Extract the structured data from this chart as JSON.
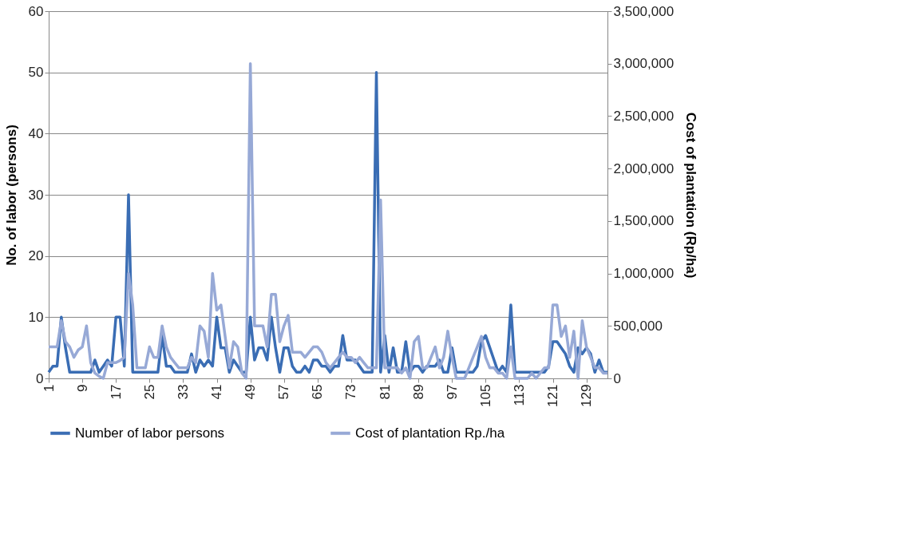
{
  "chart_data": {
    "type": "line",
    "ylabel": "No. of labor (persons)",
    "y2label": "Cost of plantation (Rp/ha)",
    "categories": [
      "1",
      null,
      null,
      null,
      null,
      null,
      null,
      null,
      "9",
      null,
      null,
      null,
      null,
      null,
      null,
      null,
      "17",
      null,
      null,
      null,
      null,
      null,
      null,
      null,
      "25",
      null,
      null,
      null,
      null,
      null,
      null,
      null,
      "33",
      null,
      null,
      null,
      null,
      null,
      null,
      null,
      "41",
      null,
      null,
      null,
      null,
      null,
      null,
      null,
      "49",
      null,
      null,
      null,
      null,
      null,
      null,
      null,
      "57",
      null,
      null,
      null,
      null,
      null,
      null,
      null,
      "65",
      null,
      null,
      null,
      null,
      null,
      null,
      null,
      "73",
      null,
      null,
      null,
      null,
      null,
      null,
      null,
      "81",
      null,
      null,
      null,
      null,
      null,
      null,
      null,
      "89",
      null,
      null,
      null,
      null,
      null,
      null,
      null,
      "97",
      null,
      null,
      null,
      null,
      null,
      null,
      null,
      "105",
      null,
      null,
      null,
      null,
      null,
      null,
      null,
      "113",
      null,
      null,
      null,
      null,
      null,
      null,
      null,
      "121",
      null,
      null,
      null,
      null,
      null,
      null,
      null,
      "129",
      null,
      null,
      null,
      null,
      null
    ],
    "series": [
      {
        "name": "Number of labor  persons",
        "color": "#3a6db4",
        "axis": "y",
        "values": [
          1,
          2,
          2,
          10,
          5,
          1,
          1,
          1,
          1,
          1,
          1,
          3,
          1,
          2,
          3,
          2,
          10,
          10,
          2,
          30,
          1,
          1,
          1,
          1,
          1,
          1,
          1,
          7,
          2,
          2,
          1,
          1,
          1,
          1,
          4,
          1,
          3,
          2,
          3,
          2,
          10,
          5,
          5,
          1,
          3,
          2,
          1,
          1,
          10,
          3,
          5,
          5,
          3,
          10,
          5,
          1,
          5,
          5,
          2,
          1,
          1,
          2,
          1,
          3,
          3,
          2,
          2,
          1,
          2,
          2,
          7,
          3,
          3,
          3,
          2,
          1,
          1,
          1,
          50,
          1,
          7,
          1,
          5,
          1,
          1,
          6,
          1,
          2,
          2,
          1,
          2,
          2,
          2,
          3,
          1,
          1,
          5,
          1,
          1,
          1,
          1,
          1,
          2,
          6,
          7,
          5,
          3,
          1,
          2,
          1,
          12,
          1,
          1,
          1,
          1,
          1,
          1,
          1,
          1,
          2,
          6,
          6,
          5,
          4,
          2,
          1,
          5,
          4,
          5,
          4,
          1,
          3,
          1,
          1
        ]
      },
      {
        "name": "Cost of plantation Rp./ha",
        "color": "#97a9d6",
        "axis": "y2",
        "values": [
          300000,
          300000,
          300000,
          550000,
          350000,
          300000,
          200000,
          270000,
          300000,
          500000,
          150000,
          50000,
          20000,
          0,
          150000,
          150000,
          150000,
          170000,
          200000,
          1000000,
          700000,
          100000,
          100000,
          100000,
          300000,
          200000,
          200000,
          500000,
          300000,
          200000,
          150000,
          100000,
          100000,
          100000,
          200000,
          150000,
          500000,
          450000,
          200000,
          1000000,
          650000,
          700000,
          400000,
          100000,
          350000,
          300000,
          50000,
          0,
          3000000,
          500000,
          500000,
          500000,
          300000,
          800000,
          800000,
          350000,
          500000,
          600000,
          250000,
          250000,
          250000,
          200000,
          250000,
          300000,
          300000,
          250000,
          150000,
          100000,
          150000,
          200000,
          250000,
          200000,
          200000,
          150000,
          200000,
          150000,
          100000,
          100000,
          100000,
          1700000,
          100000,
          100000,
          100000,
          100000,
          50000,
          100000,
          0,
          350000,
          400000,
          100000,
          100000,
          200000,
          300000,
          100000,
          200000,
          450000,
          200000,
          0,
          0,
          0,
          100000,
          200000,
          300000,
          400000,
          200000,
          100000,
          100000,
          50000,
          50000,
          0,
          300000,
          0,
          0,
          0,
          0,
          50000,
          0,
          50000,
          100000,
          100000,
          700000,
          700000,
          400000,
          500000,
          200000,
          450000,
          0,
          550000,
          300000,
          200000,
          100000,
          100000,
          50000,
          50000
        ]
      }
    ],
    "ylim": [
      0,
      60
    ],
    "yticks": [
      0,
      10,
      20,
      30,
      40,
      50,
      60
    ],
    "y2lim": [
      0,
      3500000
    ],
    "y2ticks": [
      {
        "value": 0,
        "label": "0"
      },
      {
        "value": 500000,
        "label": "500,000"
      },
      {
        "value": 1000000,
        "label": "1,000,000"
      },
      {
        "value": 1500000,
        "label": "1,500,000"
      },
      {
        "value": 2000000,
        "label": "2,000,000"
      },
      {
        "value": 2500000,
        "label": "2,500,000"
      },
      {
        "value": 3000000,
        "label": "3,000,000"
      },
      {
        "value": 3500000,
        "label": "3,500,000"
      }
    ],
    "grid": "y",
    "legend": "bottom",
    "line_style": "solid",
    "marker": "none"
  }
}
